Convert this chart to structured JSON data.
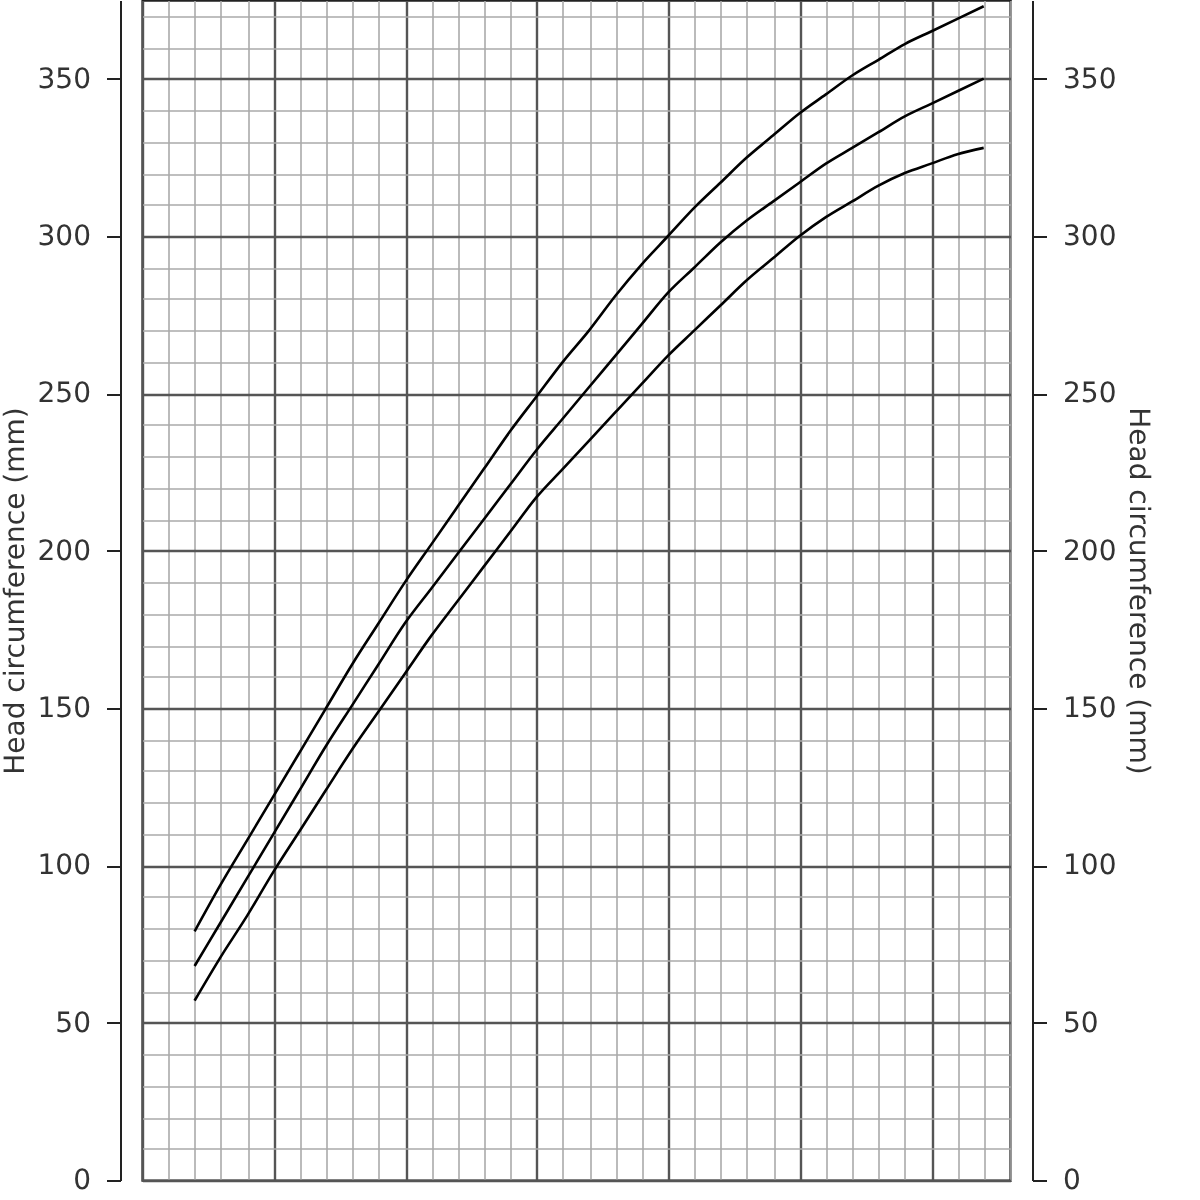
{
  "chart_data": {
    "type": "line",
    "ylabel": "Head circumference (mm)",
    "y2label": "Head circumference (mm)",
    "categories": [
      null,
      null,
      null,
      null,
      null,
      null,
      null,
      null,
      null,
      null,
      null,
      null,
      null,
      null,
      null,
      null,
      null,
      null,
      null,
      null,
      null,
      null,
      null,
      null,
      null,
      null,
      null,
      null,
      null,
      null,
      null,
      null,
      null,
      null
    ],
    "series": [
      {
        "color": "#000000",
        "values": [
          null,
          null,
          79,
          94,
          108,
          122,
          136,
          150,
          164,
          177,
          190,
          202,
          214,
          226,
          238,
          249,
          260,
          270,
          281,
          291,
          300,
          309,
          317,
          325,
          332,
          339,
          345,
          351,
          356,
          361,
          365,
          369,
          373,
          null
        ]
      },
      {
        "color": "#000000",
        "values": [
          null,
          null,
          68,
          82,
          96,
          110,
          124,
          138,
          151,
          164,
          177,
          188,
          199,
          210,
          221,
          232,
          242,
          252,
          262,
          272,
          282,
          290,
          298,
          305,
          311,
          317,
          323,
          328,
          333,
          338,
          342,
          346,
          350,
          null
        ]
      },
      {
        "color": "#000000",
        "values": [
          null,
          null,
          57,
          71,
          84,
          98,
          111,
          124,
          137,
          149,
          161,
          173,
          184,
          195,
          206,
          217,
          226,
          235,
          244,
          253,
          262,
          270,
          278,
          286,
          293,
          300,
          306,
          311,
          316,
          320,
          323,
          326,
          328,
          null
        ]
      }
    ],
    "ylim": [
      0,
      375
    ],
    "yticks": [
      0,
      {
        "value": 10,
        "label": null
      },
      {
        "value": 20,
        "label": null
      },
      {
        "value": 30,
        "label": null
      },
      {
        "value": 40,
        "label": null
      },
      50,
      {
        "value": 60,
        "label": null
      },
      {
        "value": 70,
        "label": null
      },
      {
        "value": 80,
        "label": null
      },
      {
        "value": 90,
        "label": null
      },
      100,
      {
        "value": 110,
        "label": null
      },
      {
        "value": 120,
        "label": null
      },
      {
        "value": 130,
        "label": null
      },
      {
        "value": 140,
        "label": null
      },
      150,
      {
        "value": 160,
        "label": null
      },
      {
        "value": 170,
        "label": null
      },
      {
        "value": 180,
        "label": null
      },
      {
        "value": 190,
        "label": null
      },
      200,
      {
        "value": 210,
        "label": null
      },
      {
        "value": 220,
        "label": null
      },
      {
        "value": 230,
        "label": null
      },
      {
        "value": 240,
        "label": null
      },
      250,
      {
        "value": 260,
        "label": null
      },
      {
        "value": 270,
        "label": null
      },
      {
        "value": 280,
        "label": null
      },
      {
        "value": 290,
        "label": null
      },
      300,
      {
        "value": 310,
        "label": null
      },
      {
        "value": 320,
        "label": null
      },
      {
        "value": 330,
        "label": null
      },
      {
        "value": 340,
        "label": null
      },
      350,
      {
        "value": 360,
        "label": null
      },
      {
        "value": 370,
        "label": null
      }
    ],
    "y2lim": [
      0,
      375
    ],
    "y2ticks": [
      0,
      50,
      100,
      150,
      200,
      250,
      300,
      350
    ],
    "grid": true,
    "legend": false,
    "tick_labels": "y",
    "line_style": "solid",
    "marker": "none"
  }
}
